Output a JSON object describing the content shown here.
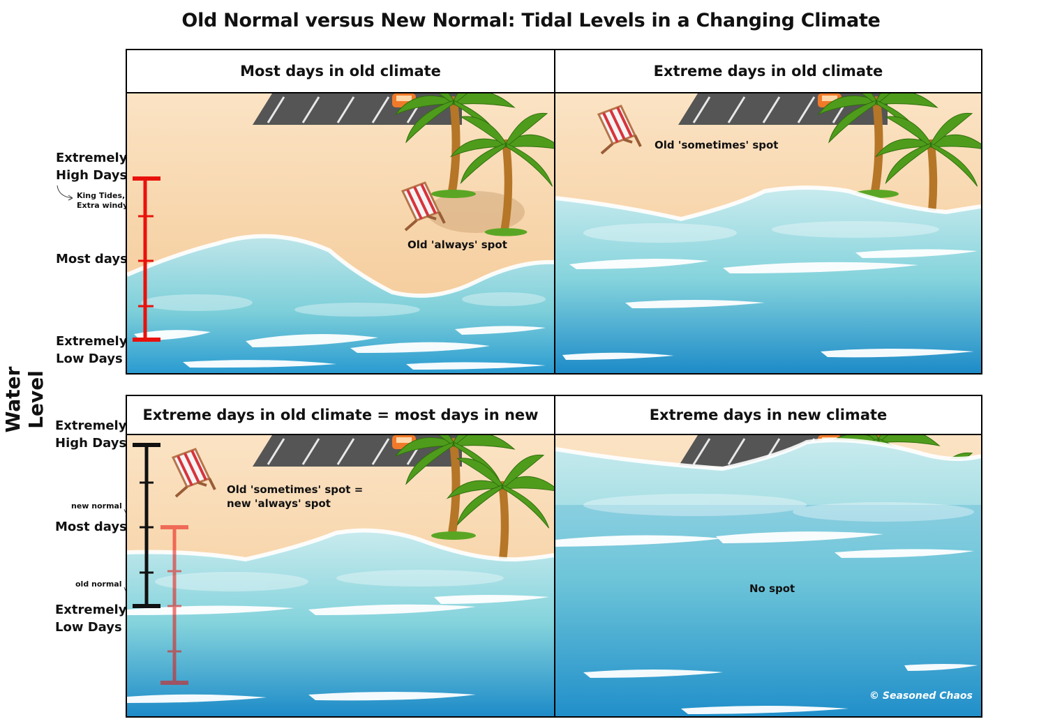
{
  "title": "Old Normal versus New Normal: Tidal Levels in a Changing Climate",
  "axis_title": "Water Level",
  "top_scale": {
    "high": "Extremely\nHigh Days",
    "high_note": "King Tides,\nExtra windy",
    "mid": "Most days",
    "low": "Extremely\nLow Days",
    "color": "#e8120c"
  },
  "bottom_scale": {
    "high": "Extremely\nHigh Days",
    "mid": "Most days",
    "low": "Extremely\nLow Days",
    "new_normal": "new normal",
    "old_normal": "old normal",
    "new_color": "#111111",
    "old_color": "#e8120c"
  },
  "panels": {
    "p1": {
      "header": "Most days in old climate",
      "note": "Old 'always' spot"
    },
    "p2": {
      "header": "Extreme days in old climate",
      "note": "Old 'sometimes' spot"
    },
    "p3": {
      "header": "Extreme days in old climate = most days in new",
      "note": "Old 'sometimes' spot =\nnew 'always' spot"
    },
    "p4": {
      "header": "Extreme days in new climate",
      "note": "No spot"
    }
  },
  "credit": "© Seasoned Chaos",
  "colors": {
    "sand": "#f6cf9e",
    "sea": "#7ccfd8",
    "deep_sea": "#1f8fc9",
    "foam": "#ffffff",
    "road": "#555555",
    "palm_leaf": "#4f9c1c",
    "trunk": "#b7782a"
  }
}
